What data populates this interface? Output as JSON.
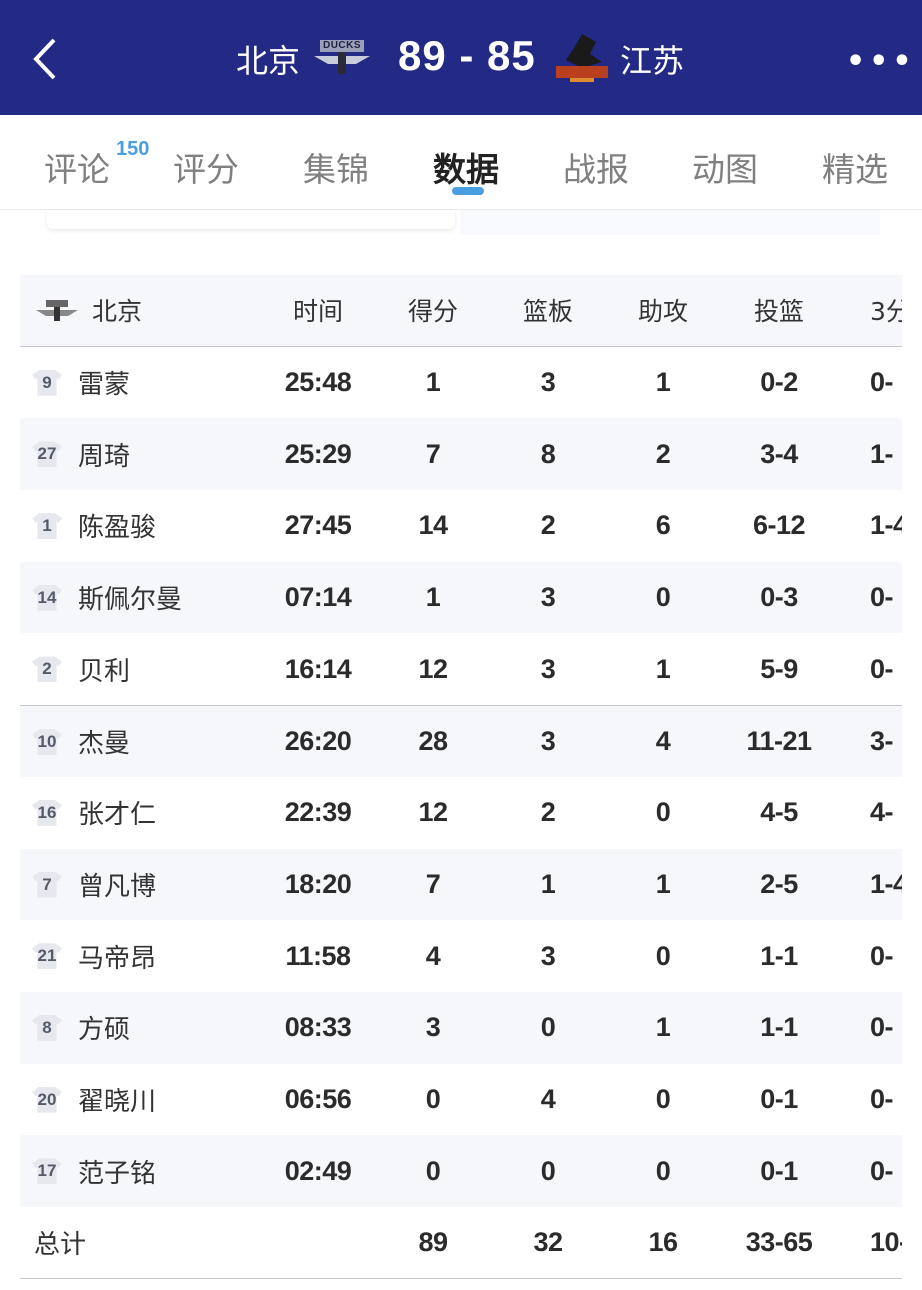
{
  "header": {
    "home_team": "北京",
    "away_team": "江苏",
    "score": "89 - 85",
    "home_logo_text": "DUCKS",
    "back_icon": "chevron-left-icon",
    "more_icon": "ellipsis-icon",
    "bg_color": "#232a86"
  },
  "tabs": [
    {
      "label": "评论",
      "badge": "150"
    },
    {
      "label": "评分"
    },
    {
      "label": "集锦"
    },
    {
      "label": "数据",
      "active": true
    },
    {
      "label": "战报"
    },
    {
      "label": "动图"
    },
    {
      "label": "精选"
    }
  ],
  "accent": "#4a9fe0",
  "table": {
    "team": "北京",
    "columns": [
      "时间",
      "得分",
      "篮板",
      "助攻",
      "投篮",
      "3分"
    ],
    "rows": [
      {
        "no": "9",
        "name": "雷蒙",
        "time": "25:48",
        "pts": "1",
        "reb": "3",
        "ast": "1",
        "fg": "0-2",
        "tp": "0-"
      },
      {
        "no": "27",
        "name": "周琦",
        "time": "25:29",
        "pts": "7",
        "reb": "8",
        "ast": "2",
        "fg": "3-4",
        "tp": "1-"
      },
      {
        "no": "1",
        "name": "陈盈骏",
        "time": "27:45",
        "pts": "14",
        "reb": "2",
        "ast": "6",
        "fg": "6-12",
        "tp": "1-4"
      },
      {
        "no": "14",
        "name": "斯佩尔曼",
        "time": "07:14",
        "pts": "1",
        "reb": "3",
        "ast": "0",
        "fg": "0-3",
        "tp": "0-"
      },
      {
        "no": "2",
        "name": "贝利",
        "time": "16:14",
        "pts": "12",
        "reb": "3",
        "ast": "1",
        "fg": "5-9",
        "tp": "0-"
      },
      {
        "no": "10",
        "name": "杰曼",
        "time": "26:20",
        "pts": "28",
        "reb": "3",
        "ast": "4",
        "fg": "11-21",
        "tp": "3-"
      },
      {
        "no": "16",
        "name": "张才仁",
        "time": "22:39",
        "pts": "12",
        "reb": "2",
        "ast": "0",
        "fg": "4-5",
        "tp": "4-"
      },
      {
        "no": "7",
        "name": "曾凡博",
        "time": "18:20",
        "pts": "7",
        "reb": "1",
        "ast": "1",
        "fg": "2-5",
        "tp": "1-4"
      },
      {
        "no": "21",
        "name": "马帝昂",
        "time": "11:58",
        "pts": "4",
        "reb": "3",
        "ast": "0",
        "fg": "1-1",
        "tp": "0-"
      },
      {
        "no": "8",
        "name": "方硕",
        "time": "08:33",
        "pts": "3",
        "reb": "0",
        "ast": "1",
        "fg": "1-1",
        "tp": "0-"
      },
      {
        "no": "20",
        "name": "翟晓川",
        "time": "06:56",
        "pts": "0",
        "reb": "4",
        "ast": "0",
        "fg": "0-1",
        "tp": "0-"
      },
      {
        "no": "17",
        "name": "范子铭",
        "time": "02:49",
        "pts": "0",
        "reb": "0",
        "ast": "0",
        "fg": "0-1",
        "tp": "0-"
      }
    ],
    "total": {
      "label": "总计",
      "pts": "89",
      "reb": "32",
      "ast": "16",
      "fg": "33-65",
      "tp": "10-"
    }
  }
}
